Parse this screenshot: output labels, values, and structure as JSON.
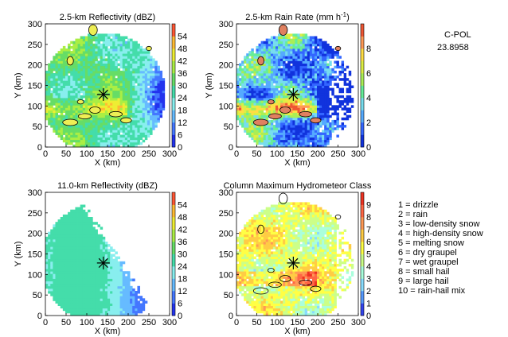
{
  "chart_data": [
    {
      "type": "heatmap",
      "title": "2.5-km Reflectivity (dBZ)",
      "xlabel": "X (km)",
      "ylabel": "Y (km)",
      "xlim": [
        0,
        300
      ],
      "ylim": [
        0,
        300
      ],
      "x_ticks": [
        0,
        50,
        100,
        150,
        200,
        250,
        300
      ],
      "y_ticks": [
        0,
        50,
        100,
        150,
        200,
        250,
        300
      ],
      "colorbar_ticks": [
        "0",
        "6",
        "12",
        "18",
        "24",
        "30",
        "36",
        "42",
        "48",
        "54"
      ],
      "colorbar_range": [
        0,
        60
      ],
      "radar_center": [
        140,
        128
      ],
      "domain_radius_km": 150
    },
    {
      "type": "heatmap",
      "title": "2.5-km Rain Rate (mm h",
      "title_sup": "-1",
      "title_end": ")",
      "xlabel": "X (km)",
      "ylabel": "Y (km)",
      "xlim": [
        0,
        300
      ],
      "ylim": [
        0,
        300
      ],
      "x_ticks": [
        0,
        50,
        100,
        150,
        200,
        250,
        300
      ],
      "y_ticks": [
        0,
        50,
        100,
        150,
        200,
        250,
        300
      ],
      "colorbar_ticks": [
        "0",
        "2",
        "4",
        "6",
        "8"
      ],
      "colorbar_range": [
        0,
        10
      ],
      "radar_center": [
        140,
        128
      ],
      "domain_radius_km": 150
    },
    {
      "type": "heatmap",
      "title": "11.0-km Reflectivity (dBZ)",
      "xlabel": "X (km)",
      "ylabel": "Y (km)",
      "xlim": [
        0,
        300
      ],
      "ylim": [
        0,
        300
      ],
      "x_ticks": [
        0,
        50,
        100,
        150,
        200,
        250,
        300
      ],
      "y_ticks": [
        0,
        50,
        100,
        150,
        200,
        250,
        300
      ],
      "colorbar_ticks": [
        "0",
        "6",
        "12",
        "18",
        "24",
        "30",
        "36",
        "42",
        "48",
        "54"
      ],
      "colorbar_range": [
        0,
        60
      ],
      "radar_center": [
        140,
        128
      ],
      "domain_radius_km": 150
    },
    {
      "type": "heatmap",
      "title": "Column Maximum Hydrometeor Class",
      "xlabel": "X (km)",
      "ylabel": "",
      "xlim": [
        0,
        300
      ],
      "ylim": [
        0,
        300
      ],
      "x_ticks": [
        0,
        50,
        100,
        150,
        200,
        250,
        300
      ],
      "y_ticks": [
        0,
        50,
        100,
        150,
        200,
        250,
        300
      ],
      "colorbar_ticks": [
        "0",
        "1",
        "2",
        "3",
        "4",
        "5",
        "6",
        "7",
        "8",
        "9"
      ],
      "colorbar_range": [
        0,
        10
      ],
      "radar_center": [
        140,
        128
      ],
      "domain_radius_km": 150
    }
  ],
  "annotation": {
    "line1": "C-POL",
    "line2": "23.8958"
  },
  "legend": [
    "1 = drizzle",
    "2 = rain",
    "3 = low-density snow",
    "4 = high-density snow",
    "5 = melting snow",
    "6 = dry graupel",
    "7 = wet graupel",
    "8 = small hail",
    "9 = large hail",
    "10 = rain-hail mix"
  ]
}
